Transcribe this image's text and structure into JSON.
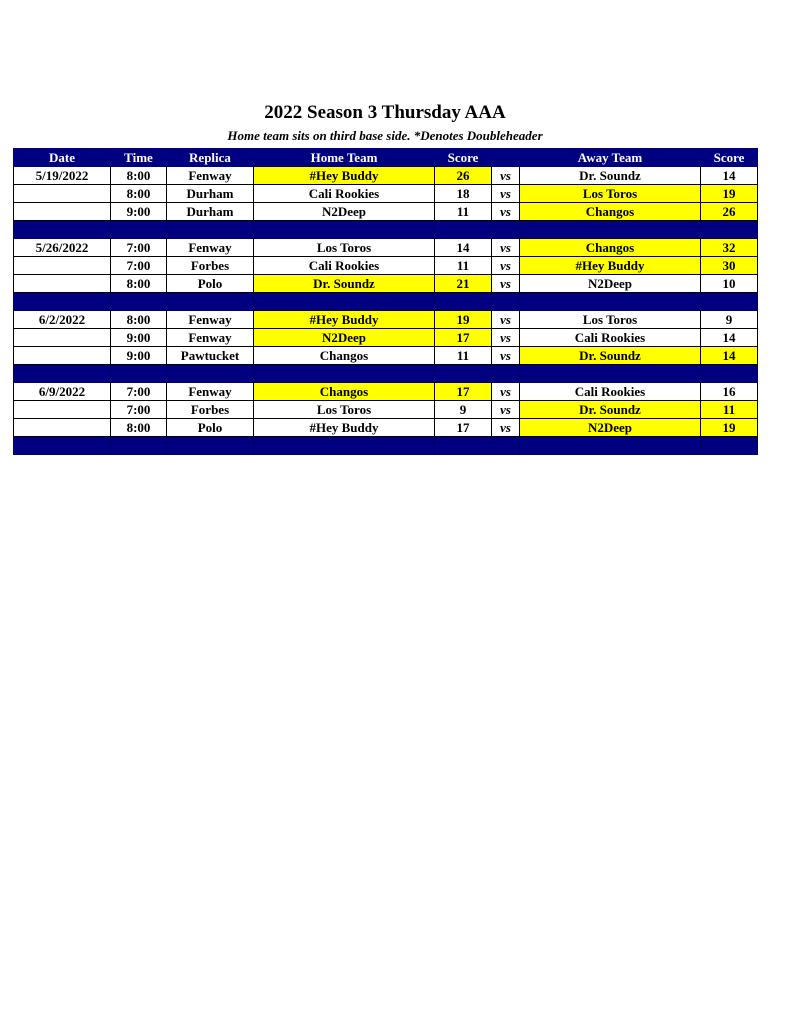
{
  "title": "2022 Season 3 Thursday AAA",
  "subtitle": "Home team sits on third base side.  *Denotes Doubleheader",
  "colors": {
    "header": "#000080",
    "winner_highlight": "#ffff00"
  },
  "headers": [
    "Date",
    "Time",
    "Replica",
    "Home Team",
    "Score",
    "",
    "Away Team",
    "Score"
  ],
  "vs_label": "vs",
  "weeks": [
    {
      "date": "5/19/2022",
      "games": [
        {
          "time": "8:00",
          "replica": "Fenway",
          "home": "#Hey Buddy",
          "home_score": "26",
          "away": "Dr. Soundz",
          "away_score": "14",
          "winner": "home"
        },
        {
          "time": "8:00",
          "replica": "Durham",
          "home": "Cali Rookies",
          "home_score": "18",
          "away": "Los Toros",
          "away_score": "19",
          "winner": "away"
        },
        {
          "time": "9:00",
          "replica": "Durham",
          "home": "N2Deep",
          "home_score": "11",
          "away": "Changos",
          "away_score": "26",
          "winner": "away"
        }
      ]
    },
    {
      "date": "5/26/2022",
      "games": [
        {
          "time": "7:00",
          "replica": "Fenway",
          "home": "Los Toros",
          "home_score": "14",
          "away": "Changos",
          "away_score": "32",
          "winner": "away"
        },
        {
          "time": "7:00",
          "replica": "Forbes",
          "home": "Cali Rookies",
          "home_score": "11",
          "away": "#Hey Buddy",
          "away_score": "30",
          "winner": "away"
        },
        {
          "time": "8:00",
          "replica": "Polo",
          "home": "Dr. Soundz",
          "home_score": "21",
          "away": "N2Deep",
          "away_score": "10",
          "winner": "home"
        }
      ]
    },
    {
      "date": "6/2/2022",
      "games": [
        {
          "time": "8:00",
          "replica": "Fenway",
          "home": "#Hey Buddy",
          "home_score": "19",
          "away": "Los Toros",
          "away_score": "9",
          "winner": "home"
        },
        {
          "time": "9:00",
          "replica": "Fenway",
          "home": "N2Deep",
          "home_score": "17",
          "away": "Cali Rookies",
          "away_score": "14",
          "winner": "home"
        },
        {
          "time": "9:00",
          "replica": "Pawtucket",
          "home": "Changos",
          "home_score": "11",
          "away": "Dr. Soundz",
          "away_score": "14",
          "winner": "away"
        }
      ]
    },
    {
      "date": "6/9/2022",
      "games": [
        {
          "time": "7:00",
          "replica": "Fenway",
          "home": "Changos",
          "home_score": "17",
          "away": "Cali Rookies",
          "away_score": "16",
          "winner": "home"
        },
        {
          "time": "7:00",
          "replica": "Forbes",
          "home": "Los Toros",
          "home_score": "9",
          "away": "Dr. Soundz",
          "away_score": "11",
          "winner": "away"
        },
        {
          "time": "8:00",
          "replica": "Polo",
          "home": "#Hey Buddy",
          "home_score": "17",
          "away": "N2Deep",
          "away_score": "19",
          "winner": "away"
        }
      ]
    }
  ]
}
